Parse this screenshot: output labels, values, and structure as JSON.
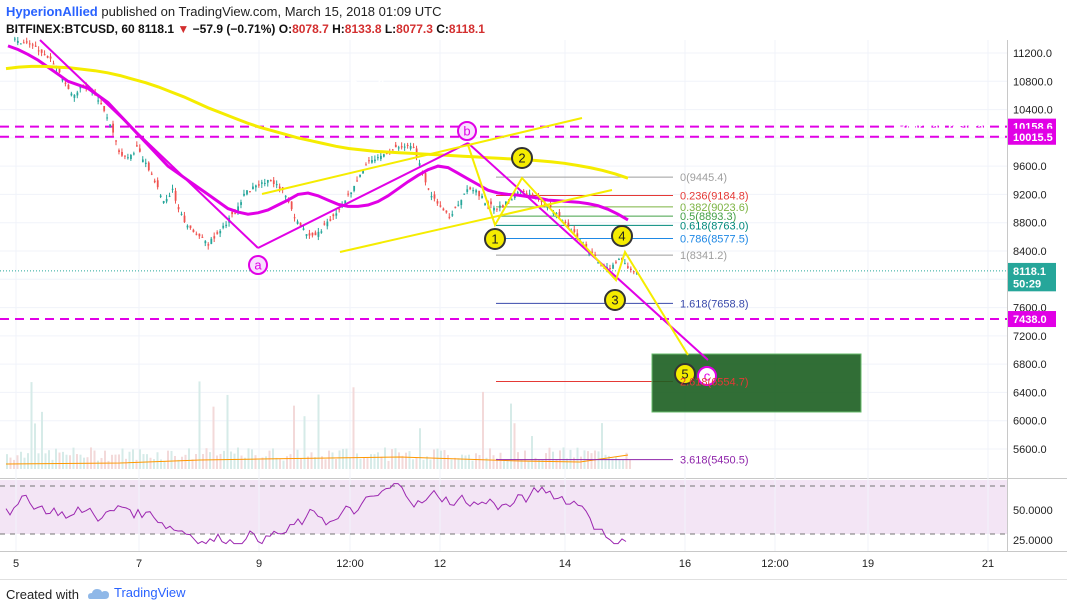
{
  "header": {
    "author": "HyperionAllied",
    "published": "published on TradingView.com, March 15, 2018 01:09 UTC",
    "symbol": "BITFINEX:BTCUSD, 60",
    "last": "8118.1",
    "change_arrow": "▼",
    "change": "−57.9 (−0.71%)",
    "ohlc_open_label": "O:",
    "ohlc_open": "8078.7",
    "ohlc_high_label": "H:",
    "ohlc_high": "8133.8",
    "ohlc_low_label": "L:",
    "ohlc_low": "8077.3",
    "ohlc_close_label": "C:",
    "ohlc_close": "8118.1"
  },
  "footer": {
    "created_with": "Created with",
    "brand": "TradingView"
  },
  "colors": {
    "bullish": "#26a69a",
    "bearish": "#ef5350",
    "magenta": "#e100e6",
    "yellow": "#f5ec00",
    "purple_line": "#9c27b0",
    "green_box": "#1b5e20"
  },
  "chart_data": {
    "type": "line",
    "title": "",
    "annotations": [
      "Bear flag",
      "Bear flag resistan",
      "a",
      "b",
      "c",
      "1",
      "2",
      "3",
      "4",
      "5"
    ],
    "x_tick_labels": [
      "5",
      "7",
      "9",
      "12:00",
      "12",
      "14",
      "16",
      "12:00",
      "19",
      "21"
    ],
    "y_tick_labels": [
      "11200.0",
      "10800.0",
      "10400.0",
      "10000.0",
      "9600.0",
      "9200.0",
      "8800.0",
      "8400.0",
      "8000.0",
      "7600.0",
      "7200.0",
      "6800.0",
      "6400.0",
      "6000.0",
      "5600.0"
    ],
    "ylim": [
      5300,
      11400
    ],
    "price_labels": [
      {
        "value": 10158.6,
        "text": "10158.6",
        "color": "#e100e6"
      },
      {
        "value": 10015.5,
        "text": "10015.5",
        "color": "#e100e6"
      },
      {
        "value": 8118.1,
        "text": "8118.1",
        "color": "#26a69a"
      },
      {
        "value": 7943,
        "text": "50:29",
        "color": "#26a69a"
      },
      {
        "value": 7438.0,
        "text": "7438.0",
        "color": "#e100e6"
      }
    ],
    "horizontal_levels": [
      10158.6,
      10015.5,
      7438.0
    ],
    "fibonacci": [
      {
        "ratio": "0",
        "value": 9445.4,
        "label": "0(9445.4)",
        "color": "#9e9e9e"
      },
      {
        "ratio": "0.236",
        "value": 9184.8,
        "label": "0.236(9184.8)",
        "color": "#e53935"
      },
      {
        "ratio": "0.382",
        "value": 9023.6,
        "label": "0.382(9023.6)",
        "color": "#7cb342"
      },
      {
        "ratio": "0.5",
        "value": 8893.3,
        "label": "0.5(8893.3)",
        "color": "#43a047"
      },
      {
        "ratio": "0.618",
        "value": 8763.0,
        "label": "0.618(8763.0)",
        "color": "#00897b"
      },
      {
        "ratio": "0.786",
        "value": 8577.5,
        "label": "0.786(8577.5)",
        "color": "#1e88e5"
      },
      {
        "ratio": "1",
        "value": 8341.2,
        "label": "1(8341.2)",
        "color": "#9e9e9e"
      },
      {
        "ratio": "1.618",
        "value": 7658.8,
        "label": "1.618(7658.8)",
        "color": "#3949ab"
      },
      {
        "ratio": "2.618",
        "value": 6554.7,
        "label": "2.618(6554.7)",
        "color": "#e53935"
      },
      {
        "ratio": "3.618",
        "value": 5450.5,
        "label": "3.618(5450.5)",
        "color": "#8e24aa"
      }
    ],
    "series": [
      {
        "values": [
          11350,
          11320,
          11250,
          11150,
          11000,
          10750,
          10600,
          10750,
          10650,
          10450,
          10200,
          9800,
          9700,
          9850,
          9650,
          9400,
          9100,
          9250,
          8900,
          8700,
          8600,
          8500,
          8650,
          8800,
          8950,
          9200,
          9300,
          9350,
          9400,
          9300,
          9100,
          8800,
          8650,
          8600,
          8750,
          8900,
          9050,
          9250,
          9500,
          9650,
          9700,
          9800,
          9850,
          9900,
          9850,
          9500,
          9200,
          9000,
          8900,
          9050,
          9300,
          9250,
          9100,
          9000,
          9050,
          9150,
          9250,
          9200,
          9150,
          9050,
          8950,
          8800,
          8650,
          8500,
          8350,
          8200,
          8150,
          8300,
          8150,
          8118
        ]
      },
      {
        "values": [
          11300,
          11250,
          11180,
          11100,
          11000,
          10900,
          10800,
          10750,
          10700,
          10600,
          10500,
          10350,
          10200,
          10050,
          9900,
          9750,
          9600,
          9500,
          9400,
          9300,
          9200,
          9100,
          9000,
          8950,
          8920,
          8940,
          8980,
          9050,
          9120,
          9200,
          9220,
          9180,
          9120,
          9060,
          9030,
          9030,
          9050,
          9100,
          9180,
          9280,
          9380,
          9470,
          9550,
          9600,
          9580,
          9500,
          9420,
          9340,
          9260,
          9220,
          9200,
          9190,
          9170,
          9150,
          9120,
          9110,
          9100,
          9090,
          9070,
          9040,
          8990,
          8920,
          8840
        ]
      },
      {
        "values": [
          10980,
          11000,
          11010,
          11010,
          11000,
          10990,
          10970,
          10950,
          10920,
          10880,
          10830,
          10780,
          10720,
          10650,
          10580,
          10500,
          10420,
          10350,
          10280,
          10210,
          10150,
          10100,
          10050,
          10000,
          9960,
          9920,
          9880,
          9850,
          9830,
          9810,
          9800,
          9790,
          9780,
          9770,
          9760,
          9750,
          9740,
          9730,
          9720,
          9710,
          9700,
          9690,
          9675,
          9660,
          9640,
          9610,
          9580,
          9540,
          9490,
          9430
        ]
      }
    ],
    "rsi": {
      "y_tick_labels": [
        "50.0000",
        "25.0000"
      ],
      "levels": [
        70,
        30
      ]
    }
  }
}
